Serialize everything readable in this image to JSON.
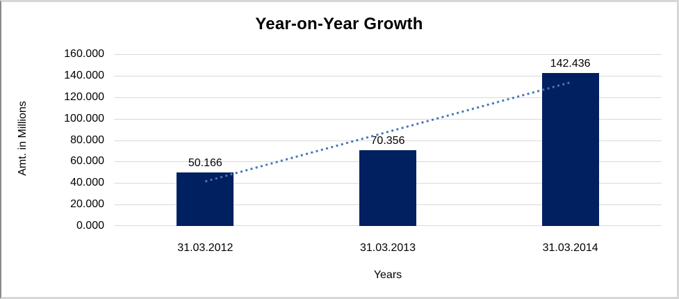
{
  "chart_data": {
    "type": "bar",
    "title": "Year-on-Year Growth",
    "xlabel": "Years",
    "ylabel": "Amt. in Millions",
    "categories": [
      "31.03.2012",
      "31.03.2013",
      "31.03.2014"
    ],
    "values": [
      50.166,
      70.356,
      142.436
    ],
    "value_labels": [
      "50.166",
      "70.356",
      "142.436"
    ],
    "ylim": [
      0,
      160
    ],
    "ytick_step": 20,
    "ytick_labels": [
      "0.000",
      "20.000",
      "40.000",
      "60.000",
      "80.000",
      "100.000",
      "120.000",
      "140.000",
      "160.000"
    ],
    "grid": true,
    "legend": "none",
    "trendline": {
      "type": "linear",
      "style": "dotted"
    },
    "colors": {
      "bar": "#002060",
      "trendline": "#4777b7",
      "gridline": "#d9d9d9",
      "text": "#000000",
      "chart_border": "#d6d6d6",
      "chart_border_left": "#8a8a8a",
      "background": "#ffffff"
    }
  }
}
